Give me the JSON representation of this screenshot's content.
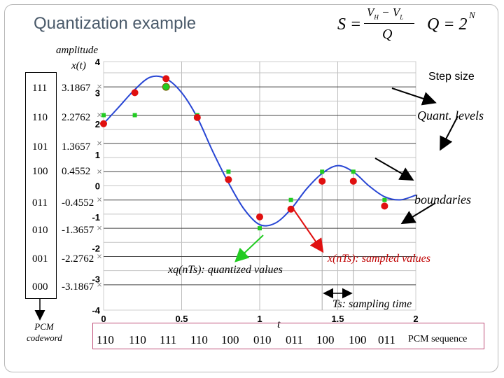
{
  "title": "Quantization example",
  "formula": {
    "s_lhs": "S =",
    "s_num": "V",
    "s_num_h": "H",
    "s_minus": " − V",
    "s_num_l": "L",
    "s_den": "Q",
    "q_eq": "Q = 2",
    "q_exp": "N"
  },
  "left_labels": {
    "amplitude": "amplitude",
    "xt": "x(t)",
    "pcm_codeword": "PCM codeword"
  },
  "levels": [
    {
      "code": "111",
      "value": "3.1867"
    },
    {
      "code": "110",
      "value": "2.2762"
    },
    {
      "code": "101",
      "value": "1.3657"
    },
    {
      "code": "100",
      "value": "0.4552"
    },
    {
      "code": "011",
      "value": "-0.4552"
    },
    {
      "code": "010",
      "value": "-1.3657"
    },
    {
      "code": "001",
      "value": "-2.2762"
    },
    {
      "code": "000",
      "value": "-3.1867"
    }
  ],
  "annotations": {
    "step_size": "Step size",
    "quant_levels": "Quant. levels",
    "boundaries": "boundaries",
    "quantized": "xq(nTs): quantized values",
    "sampled": "x(nTs): sampled values",
    "sampling_time": "Ts: sampling time",
    "t_label": "t"
  },
  "pcm": {
    "codes": [
      "110",
      "110",
      "111",
      "110",
      "100",
      "010",
      "011",
      "100",
      "100",
      "011"
    ],
    "label": "PCM sequence"
  },
  "colors": {
    "curve": "#2846d4",
    "sampled": "#e01010",
    "quantized": "#22cc22",
    "grid": "#333333",
    "pcm_border": "#c0507a",
    "title": "#4a5a6a"
  },
  "chart_data": {
    "type": "line",
    "x_ticks": [
      "0",
      "0.5",
      "1",
      "1.5",
      "2"
    ],
    "y_ticks": [
      "4",
      "3",
      "2",
      "1",
      "0",
      "-1",
      "-2",
      "-3",
      "-4"
    ],
    "xlim": [
      0,
      2
    ],
    "ylim": [
      -4,
      4
    ],
    "quant_levels": [
      3.1867,
      2.2762,
      1.3657,
      0.4552,
      -0.4552,
      -1.3657,
      -2.2762,
      -3.1867
    ],
    "boundaries": [
      3.64,
      2.73,
      1.82,
      0.91,
      0,
      -0.91,
      -1.82,
      -2.73
    ],
    "curve": {
      "x": [
        0,
        0.1,
        0.2,
        0.3,
        0.4,
        0.5,
        0.6,
        0.7,
        0.8,
        0.9,
        1.0,
        1.1,
        1.2,
        1.3,
        1.4,
        1.5,
        1.6,
        1.7,
        1.8,
        1.9,
        2.0
      ],
      "y": [
        2.0,
        2.55,
        3.1,
        3.5,
        3.45,
        3.0,
        2.2,
        1.1,
        0.1,
        -0.75,
        -1.25,
        -1.2,
        -0.75,
        -0.1,
        0.4,
        0.65,
        0.45,
        0.0,
        -0.35,
        -0.45,
        -0.3
      ]
    },
    "samples": [
      {
        "x": 0.0,
        "sampled": 2.0,
        "quantized": 2.2762
      },
      {
        "x": 0.2,
        "sampled": 3.0,
        "quantized": 2.2762
      },
      {
        "x": 0.4,
        "sampled": 3.45,
        "quantized": 3.1867
      },
      {
        "x": 0.6,
        "sampled": 2.2,
        "quantized": 2.2762
      },
      {
        "x": 0.8,
        "sampled": 0.2,
        "quantized": 0.4552
      },
      {
        "x": 1.0,
        "sampled": -1.0,
        "quantized": -1.3657
      },
      {
        "x": 1.2,
        "sampled": -0.75,
        "quantized": -0.4552
      },
      {
        "x": 1.4,
        "sampled": 0.15,
        "quantized": 0.4552
      },
      {
        "x": 1.6,
        "sampled": 0.15,
        "quantized": 0.4552
      },
      {
        "x": 1.8,
        "sampled": -0.65,
        "quantized": -0.4552
      }
    ]
  }
}
